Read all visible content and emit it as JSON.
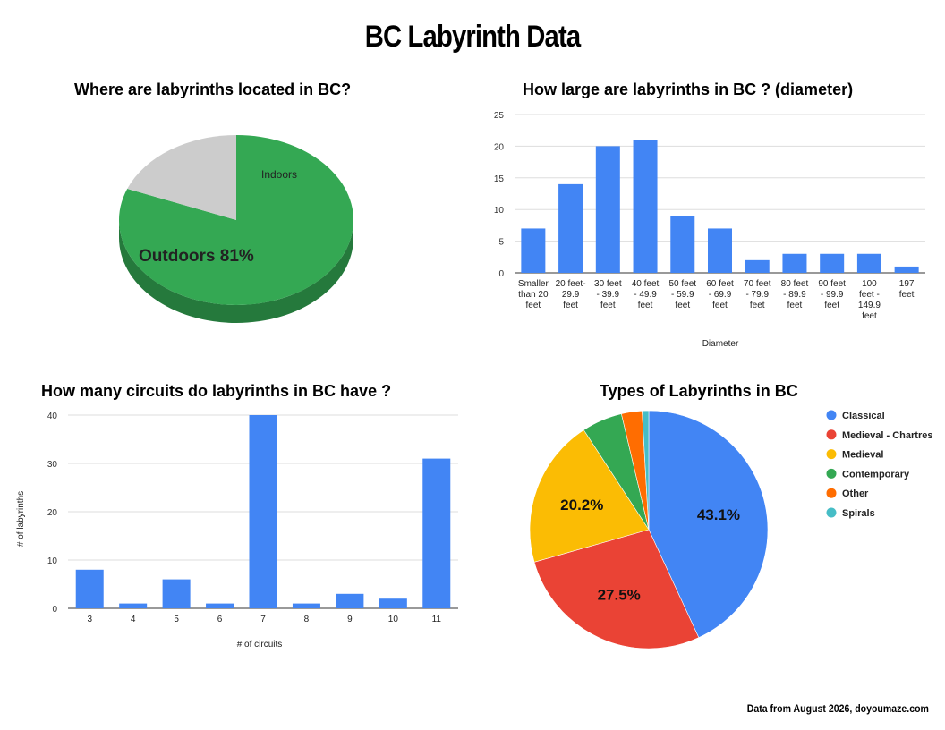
{
  "page": {
    "title": "BC Labyrinth Data",
    "footer": "Data from August 2026, doyoumaze.com"
  },
  "chart_data": [
    {
      "type": "pie",
      "title": "Where are labyrinths located in BC?",
      "slices": [
        {
          "label": "Outdoors",
          "value": 81,
          "color": "#34a853",
          "shown_label": "Outdoors 81%"
        },
        {
          "label": "Indoors",
          "value": 19,
          "color": "#cccccc",
          "shown_label": "Indoors"
        }
      ],
      "style": "3d"
    },
    {
      "type": "bar",
      "title": "How large are labyrinths in BC ? (diameter)",
      "xlabel": "Diameter",
      "ylabel": "",
      "ylim": [
        0,
        25
      ],
      "yticks": [
        0,
        5,
        10,
        15,
        20,
        25
      ],
      "grid": true,
      "color": "#4285f4",
      "categories": [
        [
          "Smaller",
          "than 20",
          "feet"
        ],
        [
          "20 feet-",
          "29.9",
          "feet"
        ],
        [
          "30 feet",
          "- 39.9",
          "feet"
        ],
        [
          "40 feet",
          "- 49.9",
          "feet"
        ],
        [
          "50 feet",
          "- 59.9",
          "feet"
        ],
        [
          "60 feet",
          "- 69.9",
          "feet"
        ],
        [
          "70 feet",
          "- 79.9",
          "feet"
        ],
        [
          "80 feet",
          "- 89.9",
          "feet"
        ],
        [
          "90 feet",
          "- 99.9",
          "feet"
        ],
        [
          "100",
          "feet -",
          "149.9",
          "feet"
        ],
        [
          "197",
          "feet"
        ]
      ],
      "values": [
        7,
        14,
        20,
        21,
        9,
        7,
        2,
        3,
        3,
        3,
        1
      ]
    },
    {
      "type": "bar",
      "title": "How many circuits do labyrinths in BC have ?",
      "xlabel": "# of circuits",
      "ylabel": "# of labyrinths",
      "ylim": [
        0,
        40
      ],
      "yticks": [
        0,
        10,
        20,
        30,
        40
      ],
      "grid": true,
      "color": "#4285f4",
      "categories": [
        "3",
        "4",
        "5",
        "6",
        "7",
        "8",
        "9",
        "10",
        "11"
      ],
      "values": [
        8,
        1,
        6,
        1,
        40,
        1,
        3,
        2,
        31
      ]
    },
    {
      "type": "pie",
      "title": "Types of Labyrinths in BC",
      "legend": "right",
      "slices": [
        {
          "label": "Classical",
          "value": 43.1,
          "color": "#4285f4",
          "shown_label": "43.1%"
        },
        {
          "label": "Medieval - Chartres",
          "value": 27.5,
          "color": "#ea4335",
          "shown_label": "27.5%"
        },
        {
          "label": "Medieval",
          "value": 20.2,
          "color": "#fbbc04",
          "shown_label": "20.2%"
        },
        {
          "label": "Contemporary",
          "value": 5.5,
          "color": "#34a853",
          "shown_label": ""
        },
        {
          "label": "Other",
          "value": 2.8,
          "color": "#ff6d01",
          "shown_label": ""
        },
        {
          "label": "Spirals",
          "value": 0.9,
          "color": "#46bdc6",
          "shown_label": ""
        }
      ]
    }
  ]
}
